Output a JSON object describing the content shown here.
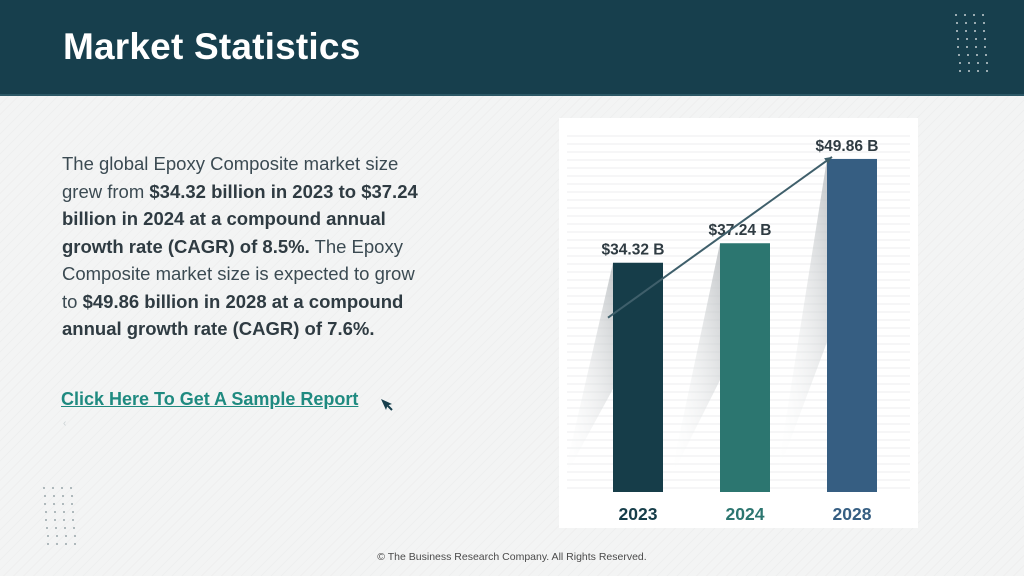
{
  "header": {
    "title": "Market Statistics"
  },
  "body": {
    "p1_plain": "The global Epoxy Composite market size grew from ",
    "p1_bold": "$34.32 billion in 2023 to $37.24 billion in 2024 at a compound annual growth rate (CAGR) of 8.5%.",
    "p2_plain": " The Epoxy Composite market size is expected to grow to ",
    "p2_bold": "$49.86 billion in 2028 at a compound annual growth rate (CAGR) of 7.6%."
  },
  "cta": {
    "label": "Click Here To Get A Sample Report"
  },
  "icons": {
    "cursor": "cursor-arrow-icon",
    "mark": "chevron-left-icon"
  },
  "chart_data": {
    "type": "bar",
    "categories": [
      "2023",
      "2024",
      "2028"
    ],
    "values": [
      34.32,
      37.24,
      49.86
    ],
    "value_labels": [
      "$34.32 B",
      "$37.24 B",
      "$49.86 B"
    ],
    "colors": [
      "#163d49",
      "#2c7670",
      "#365e82"
    ],
    "ylim": [
      0,
      50
    ],
    "grid": true,
    "trend_arrow": true
  },
  "footer": {
    "copyright": "© The Business Research Company. All Rights Reserved."
  },
  "colors": {
    "header_bg": "#173f4d",
    "link": "#1f8a80",
    "body_text": "#3b4a52"
  }
}
